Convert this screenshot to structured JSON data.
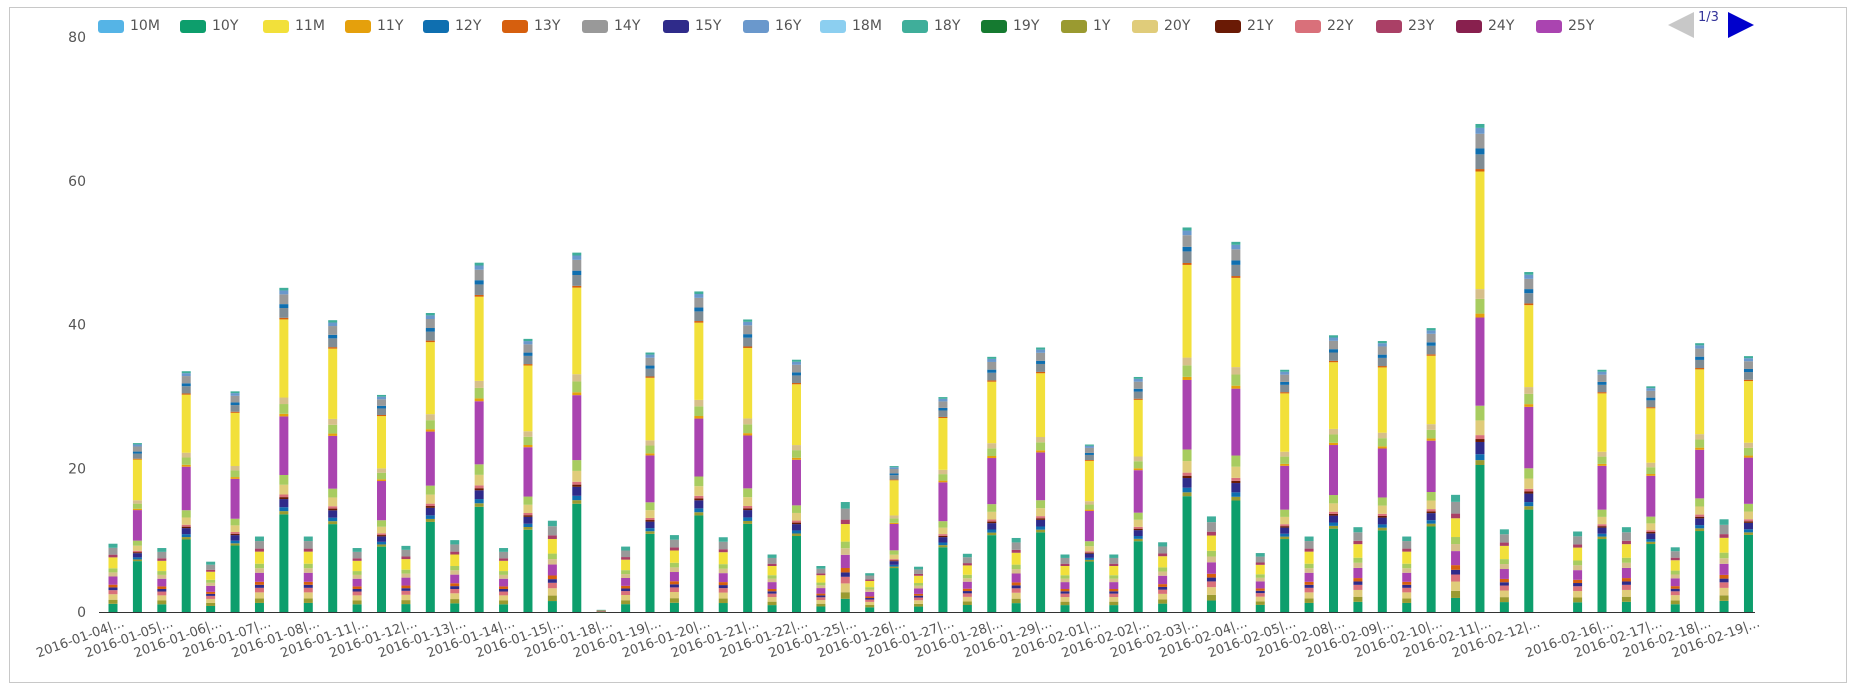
{
  "chart_data": {
    "type": "bar",
    "stacked": true,
    "ylim": [
      0,
      80
    ],
    "yticks": [
      0,
      20,
      40,
      60,
      80
    ],
    "legend_placement": "top",
    "pager": {
      "current": 1,
      "total": 3,
      "label": "1/3"
    },
    "categories": [
      "2016-01-04|...",
      "2016-01-05|...",
      "2016-01-06|...",
      "2016-01-07|...",
      "2016-01-08|...",
      "2016-01-11|...",
      "2016-01-12|...",
      "2016-01-13|...",
      "2016-01-14|...",
      "2016-01-15|...",
      "2016-01-18|...",
      "2016-01-19|...",
      "2016-01-20|...",
      "2016-01-21|...",
      "2016-01-22|...",
      "2016-01-25|...",
      "2016-01-26|...",
      "2016-01-27|...",
      "2016-01-28|...",
      "2016-01-29|...",
      "2016-02-01|...",
      "2016-02-02|...",
      "2016-02-03|...",
      "2016-02-04|...",
      "2016-02-05|...",
      "2016-02-08|...",
      "2016-02-09|...",
      "2016-02-10|...",
      "2016-02-11|...",
      "2016-02-12|...",
      "2016-02-16|...",
      "2016-02-17|...",
      "2016-02-18|...",
      "2016-02-19|..."
    ],
    "category_label_indices": [
      0,
      2,
      4,
      6,
      8,
      10,
      12,
      14,
      16,
      18,
      20,
      22,
      24,
      26,
      28,
      30,
      32,
      34,
      36,
      38,
      40,
      42,
      44,
      46,
      48,
      50,
      52,
      54,
      56,
      58,
      61,
      63,
      65,
      67
    ],
    "bar_totals": [
      9.5,
      23.5,
      8.9,
      33.5,
      7.0,
      30.7,
      10.5,
      45.1,
      10.5,
      40.6,
      8.9,
      30.2,
      9.2,
      41.6,
      10.0,
      48.6,
      8.9,
      38.0,
      12.7,
      50.0,
      0.3,
      9.1,
      36.1,
      10.7,
      44.6,
      10.4,
      40.7,
      8.0,
      35.1,
      6.4,
      15.3,
      5.4,
      20.3,
      6.3,
      29.9,
      8.1,
      35.5,
      10.3,
      36.8,
      8.0,
      23.3,
      8.0,
      32.7,
      9.7,
      53.5,
      13.3,
      51.5,
      8.2,
      33.7,
      10.5,
      38.5,
      11.8,
      37.7,
      10.5,
      39.5,
      16.3,
      67.9,
      11.5,
      47.3,
      0.0,
      11.2,
      33.7,
      11.8,
      31.4,
      9.0,
      37.4,
      12.9,
      35.6
    ],
    "series": [
      {
        "name": "10M",
        "color": "#55b4e6"
      },
      {
        "name": "10Y",
        "color": "#0d9e6c"
      },
      {
        "name": "11M",
        "color": "#f2e03a"
      },
      {
        "name": "11Y",
        "color": "#e5a00c"
      },
      {
        "name": "12Y",
        "color": "#0f6fb0"
      },
      {
        "name": "13Y",
        "color": "#d65f0e"
      },
      {
        "name": "14Y",
        "color": "#999999"
      },
      {
        "name": "15Y",
        "color": "#2f2b8a"
      },
      {
        "name": "16Y",
        "color": "#6a98cc"
      },
      {
        "name": "18M",
        "color": "#8ccff0"
      },
      {
        "name": "18Y",
        "color": "#3fae9a"
      },
      {
        "name": "19Y",
        "color": "#157a30"
      },
      {
        "name": "1Y",
        "color": "#9a9a30"
      },
      {
        "name": "20Y",
        "color": "#e0cc7a"
      },
      {
        "name": "21Y",
        "color": "#6a1a05"
      },
      {
        "name": "22Y",
        "color": "#d9707a"
      },
      {
        "name": "23Y",
        "color": "#aa4066"
      },
      {
        "name": "24Y",
        "color": "#88204e"
      },
      {
        "name": "25Y",
        "color": "#aa44b0"
      }
    ],
    "segment_colors_note": "",
    "extra_colors": {
      "light_green": "#a8cc60",
      "slate": "#7f8c94",
      "tan": "#d6bf8a"
    }
  }
}
